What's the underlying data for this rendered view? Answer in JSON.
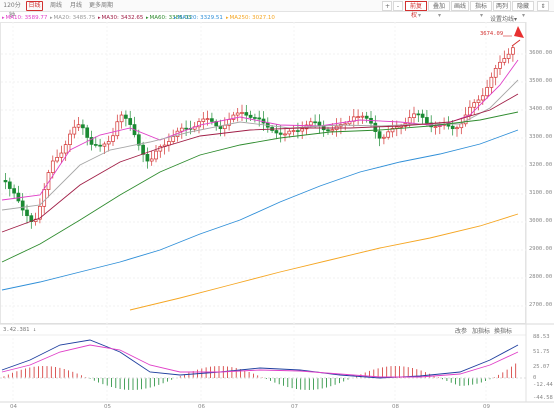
{
  "toolbar": {
    "tabs": [
      {
        "label": "120分钟",
        "active": false
      },
      {
        "label": "日线",
        "active": true
      },
      {
        "label": "周线",
        "active": false
      },
      {
        "label": "月线",
        "active": false
      },
      {
        "label": "更多周期",
        "active": false
      }
    ],
    "zoom_in": "+",
    "zoom_out": "-",
    "buttons": [
      {
        "label": "前复权",
        "active": true,
        "dropdown": true
      },
      {
        "label": "叠加",
        "active": false,
        "dropdown": true
      },
      {
        "label": "画线",
        "active": false,
        "dropdown": false
      },
      {
        "label": "指标",
        "active": false,
        "dropdown": true
      },
      {
        "label": "两列",
        "active": false,
        "dropdown": false
      },
      {
        "label": "隐藏",
        "active": false,
        "dropdown": true
      }
    ]
  },
  "ma_legend": [
    {
      "label": "MA10: 3589.77",
      "color": "#e040c8"
    },
    {
      "label": "MA20: 3485.75",
      "color": "#999999"
    },
    {
      "label": "MA30: 3432.65",
      "color": "#a01e46"
    },
    {
      "label": "MA60: 3385.03",
      "color": "#2e8b2e"
    },
    {
      "label": "MA120: 3329.51",
      "color": "#2f8fd8"
    },
    {
      "label": "MA250: 3027.10",
      "color": "#f5a623"
    }
  ],
  "settings_label": "设置均线",
  "high_marker": "3674.09",
  "price_axis": [
    "3600.00",
    "3500.00",
    "3400.00",
    "3300.00",
    "3200.00",
    "3100.00",
    "3000.00",
    "2900.00",
    "2800.00",
    "2700.00"
  ],
  "indicator": {
    "value": "3.42.381",
    "arrow": "↓",
    "buttons": [
      "改参",
      "加指标",
      "换指标"
    ],
    "axis": [
      "88.53",
      "51.75",
      "25.07",
      "0",
      "-12.44",
      "-44.58"
    ]
  },
  "date_axis": [
    "04",
    "05",
    "06",
    "07",
    "08",
    "09"
  ],
  "colors": {
    "up": "#d2302f",
    "down": "#1a8a33",
    "accent": "#d2302f"
  }
}
